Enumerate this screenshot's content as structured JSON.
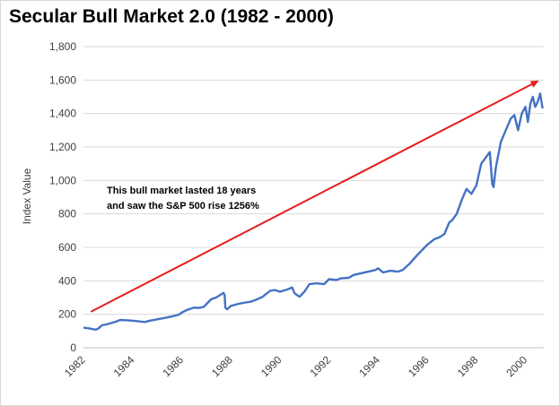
{
  "chart_data": {
    "type": "line",
    "title": "Secular Bull Market 2.0 (1982 - 2000)",
    "xlabel": "",
    "ylabel": "Index Value",
    "xlim": [
      1982,
      2000.75
    ],
    "ylim": [
      0,
      1800
    ],
    "grid": true,
    "legend": "none",
    "x_ticks": [
      1982,
      1984,
      1986,
      1988,
      1990,
      1992,
      1994,
      1996,
      1998,
      2000
    ],
    "x_tick_labels": [
      "1982",
      "1984",
      "1986",
      "1988",
      "1990",
      "1992",
      "1994",
      "1996",
      "1998",
      "2000"
    ],
    "y_ticks": [
      0,
      200,
      400,
      600,
      800,
      1000,
      1200,
      1400,
      1600,
      1800
    ],
    "y_tick_labels": [
      "0",
      "200",
      "400",
      "600",
      "800",
      "1,000",
      "1,200",
      "1,400",
      "1,600",
      "1,800"
    ],
    "series": [
      {
        "color": "#4472c4",
        "points": [
          [
            1982.0,
            120
          ],
          [
            1982.2,
            116
          ],
          [
            1982.35,
            112
          ],
          [
            1982.5,
            108
          ],
          [
            1982.6,
            114
          ],
          [
            1982.75,
            134
          ],
          [
            1983.0,
            142
          ],
          [
            1983.3,
            155
          ],
          [
            1983.5,
            166
          ],
          [
            1983.8,
            164
          ],
          [
            1984.0,
            162
          ],
          [
            1984.3,
            157
          ],
          [
            1984.5,
            154
          ],
          [
            1984.7,
            162
          ],
          [
            1985.0,
            170
          ],
          [
            1985.3,
            178
          ],
          [
            1985.6,
            187
          ],
          [
            1985.9,
            198
          ],
          [
            1986.0,
            210
          ],
          [
            1986.2,
            225
          ],
          [
            1986.5,
            240
          ],
          [
            1986.7,
            238
          ],
          [
            1986.9,
            245
          ],
          [
            1987.0,
            260
          ],
          [
            1987.2,
            290
          ],
          [
            1987.4,
            300
          ],
          [
            1987.6,
            318
          ],
          [
            1987.7,
            328
          ],
          [
            1987.75,
            315
          ],
          [
            1987.78,
            240
          ],
          [
            1987.85,
            230
          ],
          [
            1988.0,
            250
          ],
          [
            1988.3,
            262
          ],
          [
            1988.5,
            268
          ],
          [
            1988.8,
            275
          ],
          [
            1989.0,
            285
          ],
          [
            1989.3,
            305
          ],
          [
            1989.6,
            340
          ],
          [
            1989.8,
            345
          ],
          [
            1990.0,
            335
          ],
          [
            1990.3,
            348
          ],
          [
            1990.5,
            360
          ],
          [
            1990.6,
            325
          ],
          [
            1990.8,
            305
          ],
          [
            1991.0,
            335
          ],
          [
            1991.2,
            380
          ],
          [
            1991.5,
            385
          ],
          [
            1991.8,
            380
          ],
          [
            1992.0,
            410
          ],
          [
            1992.3,
            405
          ],
          [
            1992.5,
            415
          ],
          [
            1992.8,
            418
          ],
          [
            1993.0,
            435
          ],
          [
            1993.3,
            445
          ],
          [
            1993.6,
            455
          ],
          [
            1993.9,
            465
          ],
          [
            1994.0,
            475
          ],
          [
            1994.2,
            450
          ],
          [
            1994.5,
            460
          ],
          [
            1994.8,
            455
          ],
          [
            1995.0,
            465
          ],
          [
            1995.3,
            505
          ],
          [
            1995.6,
            555
          ],
          [
            1995.9,
            600
          ],
          [
            1996.0,
            615
          ],
          [
            1996.3,
            650
          ],
          [
            1996.5,
            660
          ],
          [
            1996.7,
            680
          ],
          [
            1996.9,
            750
          ],
          [
            1997.0,
            760
          ],
          [
            1997.2,
            800
          ],
          [
            1997.4,
            880
          ],
          [
            1997.6,
            950
          ],
          [
            1997.8,
            920
          ],
          [
            1998.0,
            970
          ],
          [
            1998.2,
            1100
          ],
          [
            1998.4,
            1140
          ],
          [
            1998.55,
            1170
          ],
          [
            1998.65,
            980
          ],
          [
            1998.7,
            960
          ],
          [
            1998.8,
            1080
          ],
          [
            1999.0,
            1230
          ],
          [
            1999.2,
            1300
          ],
          [
            1999.4,
            1370
          ],
          [
            1999.55,
            1390
          ],
          [
            1999.7,
            1300
          ],
          [
            1999.85,
            1400
          ],
          [
            2000.0,
            1440
          ],
          [
            2000.1,
            1350
          ],
          [
            2000.2,
            1460
          ],
          [
            2000.3,
            1500
          ],
          [
            2000.4,
            1440
          ],
          [
            2000.5,
            1470
          ],
          [
            2000.6,
            1520
          ],
          [
            2000.7,
            1430
          ]
        ]
      }
    ],
    "arrow": {
      "color": "#e41e1e",
      "from": [
        1982.3,
        215
      ],
      "to": [
        2000.55,
        1597
      ]
    },
    "annotation": [
      "This bull market lasted 18 years",
      "and saw the S&P 500 rise 1256%"
    ],
    "colors": {
      "line": "#4472c4",
      "arrow": "#e41e1e",
      "grid": "#d9d9d9",
      "text": "#404040"
    }
  }
}
